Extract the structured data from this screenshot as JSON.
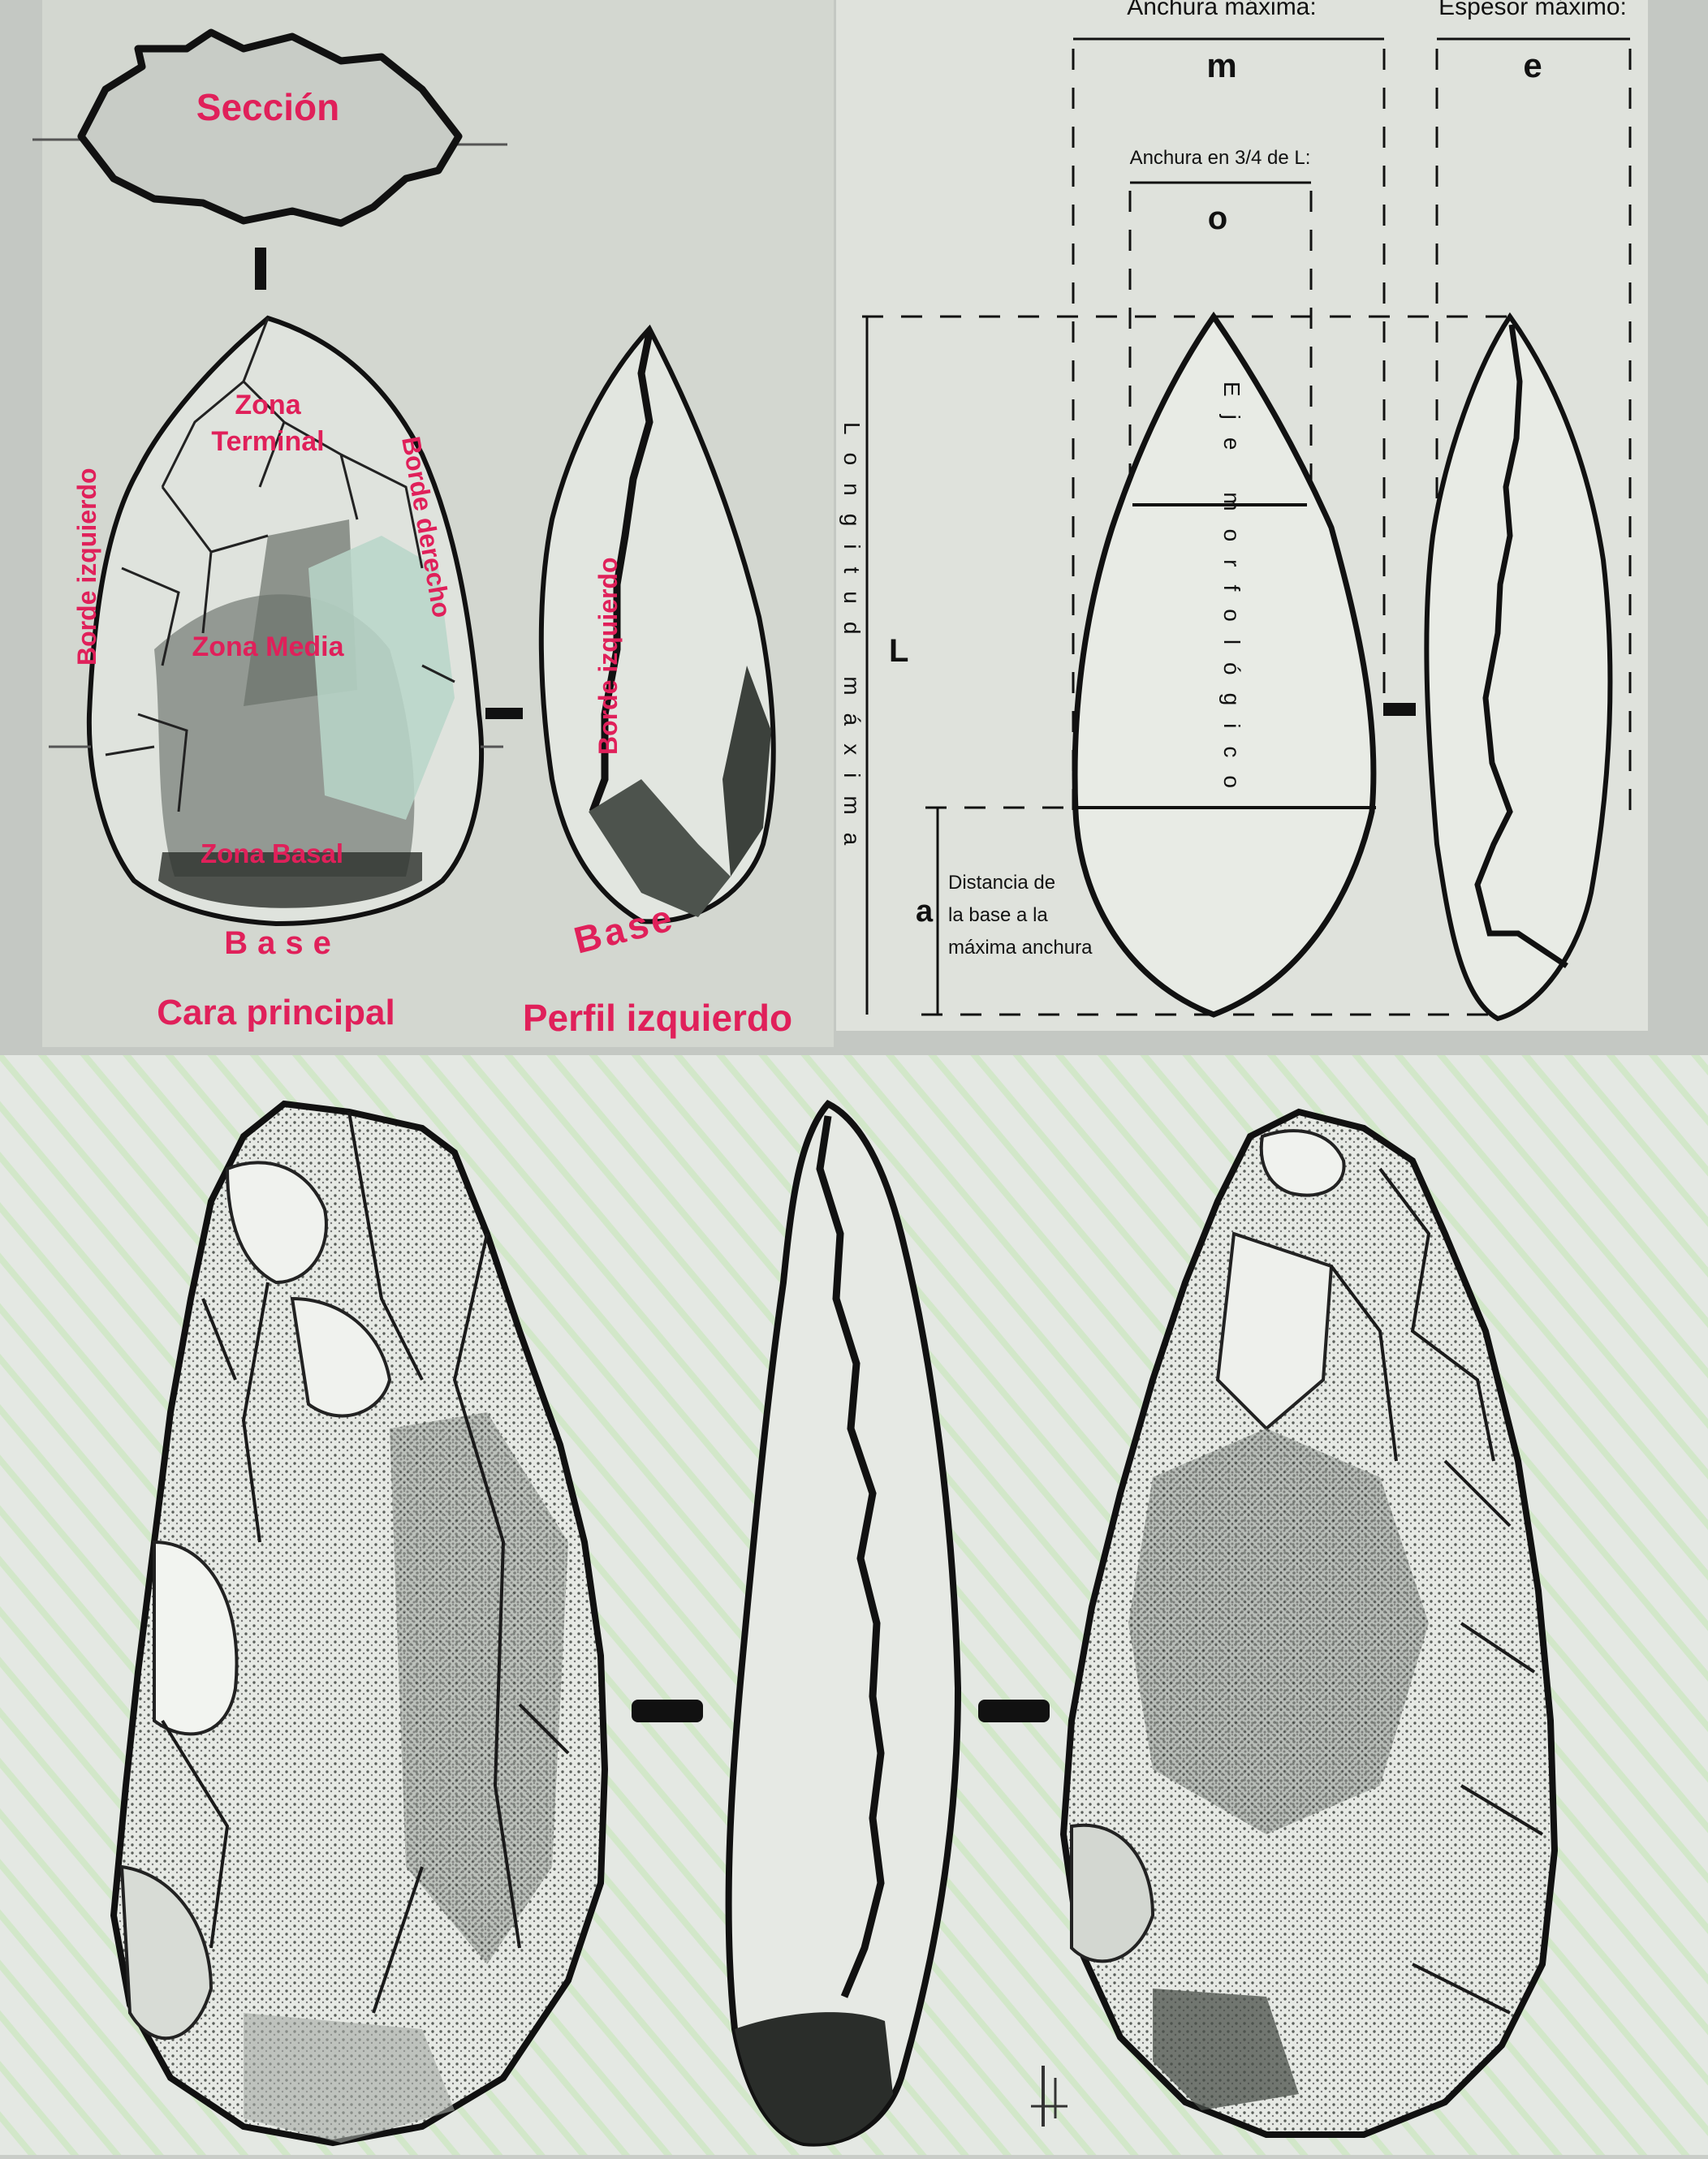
{
  "panel_left": {
    "section_label": "Sección",
    "zones": {
      "terminal_1": "Zona",
      "terminal_2": "Terminal",
      "media": "Zona Media",
      "basal": "Zona Basal"
    },
    "borders": {
      "left_face": "Borde izquierdo",
      "right_face": "Borde derecho",
      "left_profile": "Borde izquierdo"
    },
    "base_face": "Base",
    "base_profile": "Base",
    "caption_face": "Cara principal",
    "caption_profile": "Perfil izquierdo"
  },
  "panel_right": {
    "max_width_label": "Anchura máxima:",
    "max_width_symbol": "m",
    "max_thickness_label": "Espesor máximo:",
    "max_thickness_symbol": "e",
    "width_3_4_label": "Anchura en 3/4 de L:",
    "width_3_4_symbol": "o",
    "length_label": "Longitud máxima",
    "length_symbol": "L",
    "axis_label": "Eje morfológico",
    "base_dist_symbol": "a",
    "base_dist_line1": "Distancia de",
    "base_dist_line2": "la base a la",
    "base_dist_line3": "máxima anchura"
  },
  "colors": {
    "label_red": "#e0205a",
    "panel_bg": "#d2d6cf",
    "ink": "#111111"
  }
}
